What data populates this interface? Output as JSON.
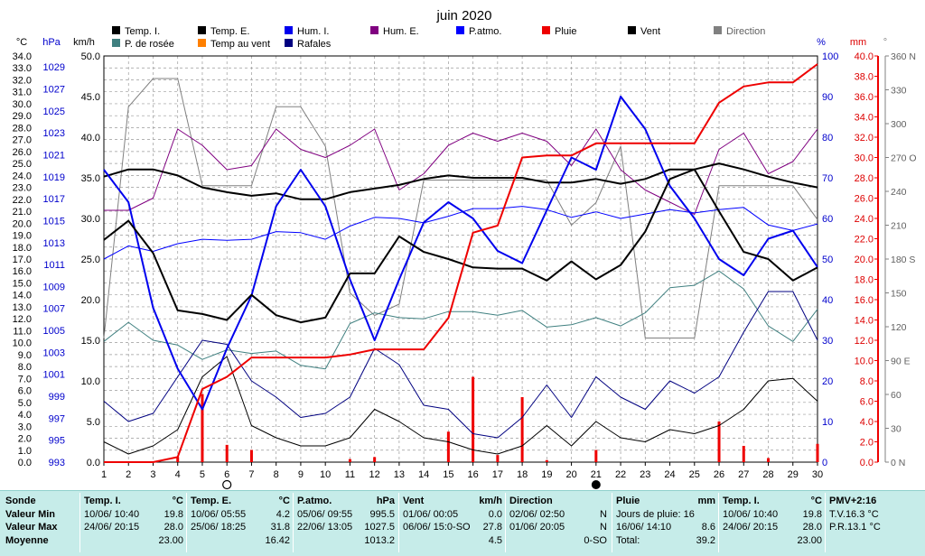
{
  "chart_data": {
    "type": "line",
    "title": "juin 2020",
    "x": [
      1,
      2,
      3,
      4,
      5,
      6,
      7,
      8,
      9,
      10,
      11,
      12,
      13,
      14,
      15,
      16,
      17,
      18,
      19,
      20,
      21,
      22,
      23,
      24,
      25,
      26,
      27,
      28,
      29,
      30
    ],
    "xlim": [
      1,
      30
    ],
    "grid": true,
    "legend_position": "top",
    "axes": {
      "temp": {
        "label": "°C",
        "range": [
          0,
          34
        ],
        "ticks": [
          "0.0",
          "1.0",
          "2.0",
          "3.0",
          "4.0",
          "5.0",
          "6.0",
          "7.0",
          "8.0",
          "9.0",
          "10.0",
          "11.0",
          "12.0",
          "13.0",
          "14.0",
          "15.0",
          "16.0",
          "17.0",
          "18.0",
          "19.0",
          "20.0",
          "21.0",
          "22.0",
          "23.0",
          "24.0",
          "25.0",
          "26.0",
          "27.0",
          "28.0",
          "29.0",
          "30.0",
          "31.0",
          "32.0",
          "33.0",
          "34.0"
        ]
      },
      "pressure": {
        "label": "hPa",
        "range": [
          993,
          1030
        ],
        "ticks": [
          "993",
          "995",
          "997",
          "999",
          "1001",
          "1003",
          "1005",
          "1007",
          "1009",
          "1011",
          "1013",
          "1015",
          "1017",
          "1019",
          "1021",
          "1023",
          "1025",
          "1027",
          "1029"
        ]
      },
      "wind": {
        "label": "km/h",
        "range": [
          0,
          50
        ],
        "ticks": [
          "0.0",
          "5.0",
          "10.0",
          "15.0",
          "20.0",
          "25.0",
          "30.0",
          "35.0",
          "40.0",
          "45.0",
          "50.0"
        ]
      },
      "humidity": {
        "label": "%",
        "range": [
          0,
          100
        ],
        "ticks": [
          "0",
          "10",
          "20",
          "30",
          "40",
          "50",
          "60",
          "70",
          "80",
          "90",
          "100"
        ]
      },
      "rain": {
        "label": "mm",
        "range": [
          0,
          40
        ],
        "ticks": [
          "0.0",
          "2.0",
          "4.0",
          "6.0",
          "8.0",
          "10.0",
          "12.0",
          "14.0",
          "16.0",
          "18.0",
          "20.0",
          "22.0",
          "24.0",
          "26.0",
          "28.0",
          "30.0",
          "32.0",
          "34.0",
          "36.0",
          "38.0",
          "40.0"
        ]
      },
      "direction": {
        "label": "°",
        "range": [
          0,
          360
        ],
        "ticks": [
          "0 N",
          "30",
          "60",
          "90 E",
          "120",
          "150",
          "180 S",
          "210",
          "240",
          "270 O",
          "300",
          "330",
          "360 N"
        ]
      }
    },
    "legend": [
      {
        "key": "t_int",
        "label": "Temp. I.",
        "color": "#000000"
      },
      {
        "key": "t_ext",
        "label": "Temp. E.",
        "color": "#000000"
      },
      {
        "key": "hum_int",
        "label": "Hum. I.",
        "color": "#0000ee"
      },
      {
        "key": "hum_ext",
        "label": "Hum. E.",
        "color": "#800080"
      },
      {
        "key": "pressure",
        "label": "P.atmo.",
        "color": "#0000ff"
      },
      {
        "key": "rain",
        "label": "Pluie",
        "color": "#ee0000"
      },
      {
        "key": "wind",
        "label": "Vent",
        "color": "#000000"
      },
      {
        "key": "direction",
        "label": "Direction",
        "color": "#808080"
      },
      {
        "key": "dew",
        "label": "P. de rosée",
        "color": "#408080"
      },
      {
        "key": "windchill",
        "label": "Temp au vent",
        "color": "#ff8000"
      },
      {
        "key": "gusts",
        "label": "Rafales",
        "color": "#000080"
      }
    ],
    "series": [
      {
        "key": "t_int",
        "axis": "temp",
        "color": "#000000",
        "width": 2,
        "values": [
          23.9,
          24.5,
          24.5,
          24.0,
          23.0,
          22.6,
          22.3,
          22.5,
          22.0,
          22.0,
          22.6,
          22.9,
          23.2,
          23.7,
          24.0,
          23.8,
          23.8,
          23.8,
          23.4,
          23.4,
          23.7,
          23.3,
          23.7,
          24.5,
          24.5,
          25.0,
          24.5,
          23.9,
          23.4,
          23.0
        ]
      },
      {
        "key": "t_ext",
        "axis": "temp",
        "color": "#000000",
        "width": 2,
        "values": [
          18.6,
          20.2,
          17.5,
          12.7,
          12.4,
          11.9,
          14.0,
          12.3,
          11.7,
          12.1,
          15.8,
          15.8,
          18.9,
          17.6,
          17.0,
          16.3,
          16.2,
          16.2,
          15.2,
          16.8,
          15.3,
          16.5,
          19.3,
          23.7,
          24.5,
          21.0,
          17.6,
          17.0,
          15.2,
          16.3
        ]
      },
      {
        "key": "hum_int",
        "axis": "humidity",
        "color": "#0000ee",
        "width": 2,
        "values": [
          72,
          64,
          38,
          23,
          13,
          28,
          41,
          63,
          72,
          63,
          45,
          30,
          45,
          59,
          64,
          60,
          52,
          49,
          62,
          75,
          72,
          90,
          82,
          68,
          60,
          50,
          46,
          55,
          57,
          48
        ]
      },
      {
        "key": "hum_ext",
        "axis": "humidity",
        "color": "#800080",
        "width": 1,
        "values": [
          62,
          62,
          65,
          82,
          78,
          72,
          73,
          82,
          77,
          75,
          78,
          82,
          67,
          71,
          78,
          81,
          79,
          81,
          79,
          73,
          82,
          72,
          67,
          64,
          61,
          77,
          81,
          71,
          74,
          82
        ]
      },
      {
        "key": "pressure",
        "axis": "pressure",
        "color": "#0000ff",
        "width": 1,
        "values": [
          1011.5,
          1012.7,
          1012.2,
          1012.9,
          1013.3,
          1013.2,
          1013.3,
          1014.0,
          1013.9,
          1013.3,
          1014.5,
          1015.3,
          1015.2,
          1014.8,
          1015.4,
          1016.1,
          1016.1,
          1016.3,
          1016.0,
          1015.3,
          1015.8,
          1015.2,
          1015.6,
          1016.0,
          1015.7,
          1016.0,
          1016.2,
          1014.6,
          1014.1,
          1014.7
        ]
      },
      {
        "key": "dew",
        "axis": "temp",
        "color": "#408080",
        "width": 1,
        "values": [
          10.1,
          11.7,
          10.2,
          9.8,
          8.6,
          9.4,
          9.1,
          9.3,
          8.1,
          7.8,
          11.6,
          12.5,
          12.1,
          12.0,
          12.6,
          12.6,
          12.3,
          12.7,
          11.3,
          11.5,
          12.1,
          11.4,
          12.5,
          14.6,
          14.8,
          16.0,
          14.5,
          11.4,
          10.1,
          12.8
        ]
      },
      {
        "key": "wind",
        "axis": "wind",
        "color": "#000000",
        "width": 1,
        "values": [
          2.5,
          1.0,
          2.0,
          4.0,
          10.5,
          13.0,
          4.5,
          3.0,
          2.0,
          2.0,
          3.0,
          6.5,
          5.0,
          3.0,
          2.5,
          1.5,
          1.0,
          2.0,
          4.5,
          2.0,
          5.0,
          3.0,
          2.5,
          4.0,
          3.5,
          4.5,
          6.5,
          10.0,
          10.3,
          7.5
        ]
      },
      {
        "key": "gusts",
        "axis": "wind",
        "color": "#000080",
        "width": 1,
        "values": [
          7.5,
          5.0,
          6.0,
          10.5,
          15.0,
          14.5,
          10.0,
          8.0,
          5.5,
          6.0,
          8.0,
          14.0,
          12.0,
          7.0,
          6.5,
          3.5,
          3.0,
          5.5,
          9.5,
          5.5,
          10.5,
          8.0,
          6.5,
          10.0,
          8.5,
          10.5,
          16.0,
          21.0,
          21.0,
          15.0
        ]
      },
      {
        "key": "direction",
        "axis": "direction",
        "color": "#808080",
        "width": 1,
        "values": [
          110,
          315,
          340,
          340,
          245,
          245,
          245,
          315,
          315,
          280,
          150,
          130,
          140,
          250,
          250,
          250,
          250,
          250,
          250,
          210,
          230,
          280,
          110,
          110,
          110,
          245,
          245,
          245,
          245,
          215
        ]
      },
      {
        "key": "rain",
        "axis": "rain",
        "color": "#ee0000",
        "width": 2,
        "values": [
          0,
          0,
          0,
          0.5,
          7.2,
          8.4,
          10.3,
          10.3,
          10.3,
          10.3,
          10.6,
          11.1,
          11.1,
          11.1,
          14.2,
          22.6,
          23.3,
          30.0,
          30.2,
          30.2,
          31.4,
          31.4,
          31.4,
          31.4,
          31.4,
          35.4,
          37.0,
          37.4,
          37.4,
          39.2
        ]
      }
    ],
    "daily_rain": {
      "axis": "rain",
      "color": "#ee0000",
      "values": [
        0,
        0,
        0,
        0.5,
        6.7,
        1.7,
        1.2,
        0,
        0,
        0,
        0.3,
        0.5,
        0,
        0,
        3.0,
        8.4,
        0.7,
        6.4,
        0.2,
        0,
        1.2,
        0,
        0,
        0,
        0,
        4.0,
        1.6,
        0.4,
        0,
        1.8
      ]
    },
    "markers": [
      {
        "type": "new moon",
        "day": 21
      },
      {
        "type": "full moon",
        "day": 6
      }
    ]
  },
  "summary": [
    {
      "title": "Sonde",
      "rows": [
        "Valeur Min",
        "Valeur Max",
        "Moyenne"
      ]
    },
    {
      "title": "Temp. I.",
      "unit": "°C",
      "rows": [
        [
          "10/06/  10:40",
          "19.8"
        ],
        [
          "24/06/  20:15",
          "28.0"
        ],
        [
          "",
          "23.00"
        ]
      ]
    },
    {
      "title": "Temp. E.",
      "unit": "°C",
      "rows": [
        [
          "10/06/  05:55",
          "4.2"
        ],
        [
          "25/06/  18:25",
          "31.8"
        ],
        [
          "",
          "16.42"
        ]
      ]
    },
    {
      "title": "P.atmo.",
      "unit": "hPa",
      "rows": [
        [
          "05/06/  09:55",
          "995.5"
        ],
        [
          "22/06/  13:05",
          "1027.5"
        ],
        [
          "",
          "1013.2"
        ]
      ]
    },
    {
      "title": "Vent",
      "unit": "km/h",
      "rows": [
        [
          "01/06/  00:05",
          "0.0"
        ],
        [
          "06/06/  15:0-SO",
          "27.8"
        ],
        [
          "",
          "4.5"
        ]
      ]
    },
    {
      "title": "Direction",
      "unit": "",
      "rows": [
        [
          "02/06/  02:50",
          "N"
        ],
        [
          "01/06/  20:05",
          "N"
        ],
        [
          "",
          "0-SO"
        ]
      ]
    },
    {
      "title": "Pluie",
      "unit": "mm",
      "rows": [
        [
          "Jours de pluie: 16",
          ""
        ],
        [
          "16/06/  14:10",
          "8.6"
        ],
        [
          "Total:",
          "39.2"
        ]
      ]
    },
    {
      "title": "Temp. I.",
      "unit": "°C",
      "rows": [
        [
          "10/06/  10:40",
          "19.8"
        ],
        [
          "24/06/  20:15",
          "28.0"
        ],
        [
          "",
          "23.00"
        ]
      ]
    },
    {
      "title": "PMV+2:16",
      "unit": "",
      "rows": [
        [
          "T.V.16.3 °C",
          ""
        ],
        [
          "P.R.13.1 °C",
          ""
        ],
        [
          "",
          ""
        ]
      ]
    }
  ]
}
